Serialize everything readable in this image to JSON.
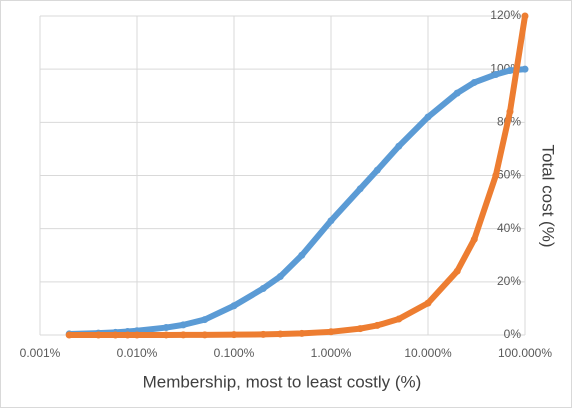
{
  "chart_data": {
    "type": "scatter",
    "x_label": "Membership, most to least costly (%)",
    "y_label": "Total cost (%)",
    "x": [
      0.002,
      0.004,
      0.006,
      0.008,
      0.01,
      0.02,
      0.03,
      0.05,
      0.1,
      0.2,
      0.3,
      0.5,
      1,
      2,
      3,
      5,
      10,
      20,
      30,
      50,
      70,
      100
    ],
    "series": [
      {
        "color": "#5b9bd5",
        "values": [
          0.4,
          0.7,
          1.0,
          1.3,
          1.6,
          2.8,
          3.8,
          5.8,
          11,
          17.5,
          22,
          30,
          43,
          55,
          62,
          71,
          82,
          91,
          95,
          98,
          99.5,
          100
        ]
      },
      {
        "color": "#ed7d31",
        "values": [
          0,
          0,
          0,
          0,
          0.01,
          0.02,
          0.04,
          0.06,
          0.12,
          0.24,
          0.36,
          0.6,
          1.2,
          2.4,
          3.6,
          6,
          12,
          24,
          36,
          60,
          84,
          120
        ]
      }
    ],
    "x_log": true,
    "xlim": [
      0.001,
      100
    ],
    "xticks": [
      {
        "value": 0.001,
        "label": "0.001%"
      },
      {
        "value": 0.01,
        "label": "0.010%"
      },
      {
        "value": 0.1,
        "label": "0.100%"
      },
      {
        "value": 1,
        "label": "1.000%"
      },
      {
        "value": 10,
        "label": "10.000%"
      },
      {
        "value": 100,
        "label": "100.000%"
      }
    ],
    "ylim": [
      0,
      120
    ],
    "yticks": [
      {
        "value": 0,
        "label": "0%"
      },
      {
        "value": 20,
        "label": "20%"
      },
      {
        "value": 40,
        "label": "40%"
      },
      {
        "value": 60,
        "label": "60%"
      },
      {
        "value": 80,
        "label": "80%"
      },
      {
        "value": 100,
        "label": "100%"
      },
      {
        "value": 120,
        "label": "120%"
      }
    ],
    "grid": true
  }
}
